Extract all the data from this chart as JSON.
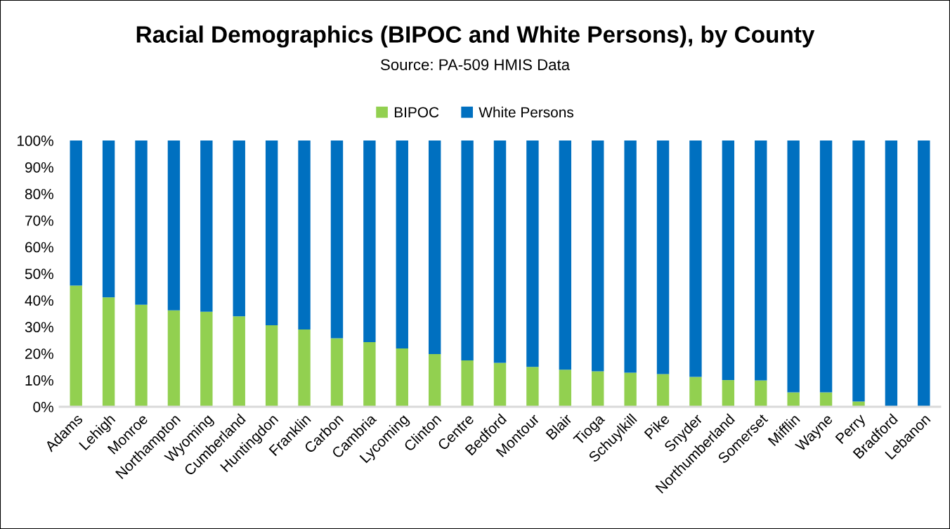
{
  "chart_data": {
    "type": "bar",
    "title": "Racial Demographics (BIPOC and White Persons), by County",
    "subtitle": "Source: PA-509 HMIS Data",
    "categories": [
      "Adams",
      "Lehigh",
      "Monroe",
      "Northampton",
      "Wyoming",
      "Cumberland",
      "Huntingdon",
      "Franklin",
      "Carbon",
      "Cambria",
      "Lycoming",
      "Clinton",
      "Centre",
      "Bedford",
      "Montour",
      "Blair",
      "Tioga",
      "Schuylkill",
      "Pike",
      "Snyder",
      "Northumberland",
      "Somerset",
      "Mifflin",
      "Wayne",
      "Perry",
      "Bradford",
      "Lebanon"
    ],
    "series": [
      {
        "name": "BIPOC",
        "color": "#92d050",
        "values": [
          45.5,
          41.1,
          38.3,
          36.2,
          35.7,
          34.0,
          30.6,
          29.0,
          25.7,
          24.3,
          21.9,
          19.8,
          17.4,
          16.5,
          15.0,
          13.9,
          13.3,
          12.8,
          12.3,
          11.2,
          10.0,
          9.9,
          5.4,
          5.4,
          2.0,
          0,
          0
        ]
      },
      {
        "name": "White Persons",
        "color": "#0070c0",
        "values": [
          54.5,
          58.9,
          61.7,
          63.8,
          64.3,
          66.0,
          69.4,
          71.0,
          74.3,
          75.7,
          78.1,
          80.2,
          82.6,
          83.5,
          85.0,
          86.1,
          86.7,
          87.2,
          87.7,
          88.8,
          90.0,
          90.1,
          94.6,
          94.6,
          98.0,
          100,
          100
        ]
      }
    ],
    "stacked": true,
    "ylim": [
      0,
      100
    ],
    "yticks": [
      {
        "value": 0,
        "label": "0%"
      },
      {
        "value": 10,
        "label": "10%"
      },
      {
        "value": 20,
        "label": "20%"
      },
      {
        "value": 30,
        "label": "30%"
      },
      {
        "value": 40,
        "label": "40%"
      },
      {
        "value": 50,
        "label": "50%"
      },
      {
        "value": 60,
        "label": "60%"
      },
      {
        "value": 70,
        "label": "70%"
      },
      {
        "value": 80,
        "label": "80%"
      },
      {
        "value": 90,
        "label": "90%"
      },
      {
        "value": 100,
        "label": "100%"
      }
    ],
    "grid": false,
    "legend": "top"
  }
}
